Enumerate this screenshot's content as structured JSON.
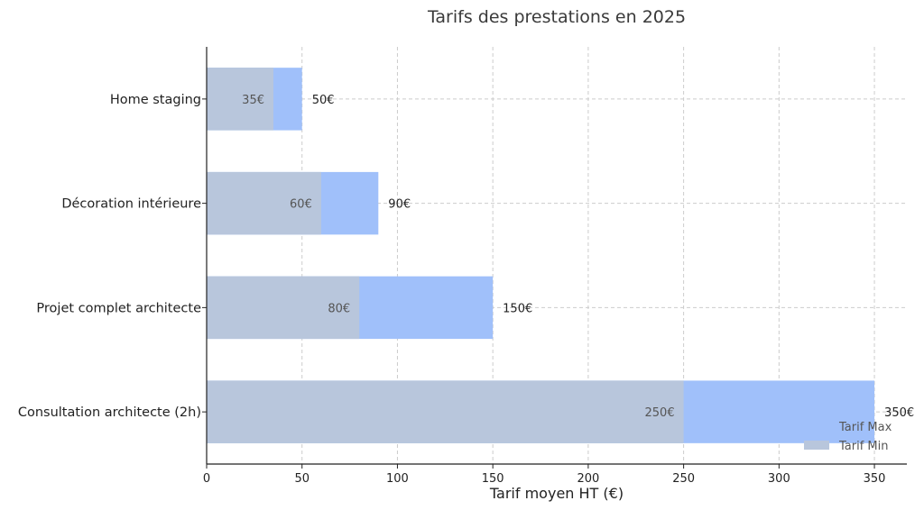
{
  "chart_data": {
    "type": "bar",
    "orientation": "horizontal",
    "title": "Tarifs des prestations en 2025",
    "xlabel": "Tarif moyen HT (€)",
    "ylabel": "",
    "categories": [
      "Consultation architecte (2h)",
      "Projet complet architecte",
      "Décoration intérieure",
      "Home staging"
    ],
    "series": [
      {
        "name": "Tarif Max",
        "values": [
          350,
          150,
          90,
          50
        ],
        "labels": [
          "350€",
          "150€",
          "90€",
          "50€"
        ],
        "color": "#a0c0fa"
      },
      {
        "name": "Tarif Min",
        "values": [
          250,
          80,
          60,
          35
        ],
        "labels": [
          "250€",
          "80€",
          "60€",
          "35€"
        ],
        "color": "#b8c6dc"
      }
    ],
    "xlim": [
      0,
      367
    ],
    "xticks": [
      0,
      50,
      100,
      150,
      200,
      250,
      300,
      350
    ],
    "xtick_labels": [
      "0",
      "50",
      "100",
      "150",
      "200",
      "250",
      "300",
      "350"
    ],
    "grid": true,
    "legend_position": "bottom-right"
  }
}
